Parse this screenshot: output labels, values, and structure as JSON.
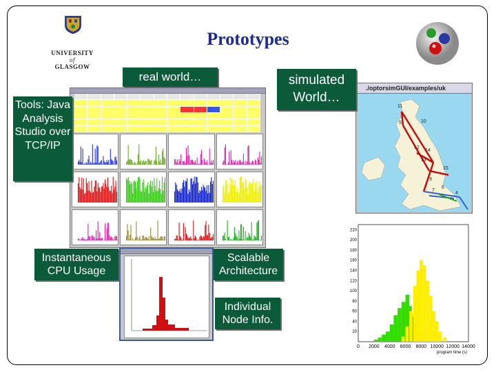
{
  "slide": {
    "title": "Prototypes",
    "logo": {
      "line1": "UNIVERSITY",
      "line2": "of",
      "line3": "GLASGOW",
      "icon": "university-crest-icon"
    },
    "corner_icon": "molecule-logo-icon"
  },
  "callouts": {
    "real_world": "real world…",
    "simulated_world": "simulated World…",
    "tools": "Tools: Java Analysis Studio over TCP/IP",
    "cpu": "Instantaneous CPU Usage",
    "scalable": "Scalable Architecture",
    "node_info": "Individual Node Info."
  },
  "sim_window": {
    "title": "./optorsimGUI/examples/uk",
    "node_labels": [
      "11",
      "5",
      "10",
      "12",
      "14",
      "13",
      "15",
      "9",
      "7",
      "6",
      "4"
    ]
  },
  "histogram": {
    "xlabel": "program time (s)",
    "x_ticks": [
      "0",
      "2000",
      "4000",
      "6000",
      "8000",
      "10000",
      "12000",
      "14000"
    ],
    "y_ticks": [
      "20",
      "40",
      "60",
      "80",
      "100",
      "120",
      "140",
      "160",
      "180",
      "200",
      "220"
    ],
    "colors": {
      "green": "#33dd00",
      "yellow": "#ffee00"
    }
  }
}
